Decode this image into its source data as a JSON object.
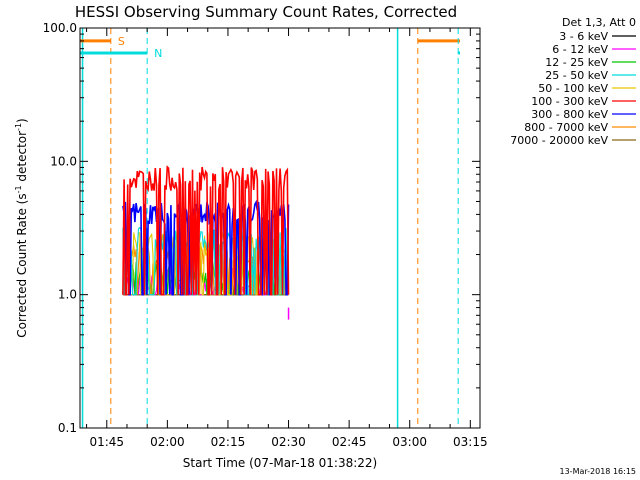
{
  "chart_data": {
    "type": "line",
    "title": "HESSI Observing Summary Count Rates, Corrected",
    "xlabel": "Start Time (07-Mar-18 01:38:22)",
    "ylabel_main": "Corrected Count Rate (s",
    "ylabel_sup1": "-1",
    "ylabel_mid": " detector",
    "ylabel_sup2": "-1",
    "ylabel_end": ")",
    "y_scale": "log",
    "ylim": [
      0.1,
      100
    ],
    "xlim_minutes": [
      98.37,
      197.4
    ],
    "y_ticks": [
      {
        "value": 0.1,
        "label": "0.1"
      },
      {
        "value": 1,
        "label": "1.0"
      },
      {
        "value": 10,
        "label": "10.0"
      },
      {
        "value": 100,
        "label": "100.0"
      }
    ],
    "x_ticks": [
      {
        "minute": 105,
        "label": "01:45"
      },
      {
        "minute": 120,
        "label": "02:00"
      },
      {
        "minute": 135,
        "label": "02:15"
      },
      {
        "minute": 150,
        "label": "02:30"
      },
      {
        "minute": 165,
        "label": "02:45"
      },
      {
        "minute": 180,
        "label": "03:00"
      },
      {
        "minute": 195,
        "label": "03:15"
      }
    ],
    "legend_header": "Det 1,3, Att 0",
    "series": [
      {
        "name": "3 - 6 keV",
        "color": "#000000",
        "level": 1.0,
        "x_start": "01:49",
        "x_end": "02:30"
      },
      {
        "name": "6 - 12 keV",
        "color": "#ff00ff",
        "level": 1.3,
        "x_start": "01:49",
        "x_end": "02:30"
      },
      {
        "name": "12 - 25 keV",
        "color": "#00c800",
        "level": 1.5,
        "x_start": "01:49",
        "x_end": "02:30"
      },
      {
        "name": "25 - 50 keV",
        "color": "#00dcdc",
        "level": 2.6,
        "x_start": "01:49",
        "x_end": "02:30"
      },
      {
        "name": "50 - 100 keV",
        "color": "#e6c800",
        "level": 2.4,
        "x_start": "01:49",
        "x_end": "02:30"
      },
      {
        "name": "100 - 300 keV",
        "color": "#ff0000",
        "level": 7.4,
        "x_start": "01:49",
        "x_end": "02:30"
      },
      {
        "name": "300 - 800 keV",
        "color": "#0000ff",
        "level": 4.1,
        "x_start": "01:49",
        "x_end": "02:30"
      },
      {
        "name": "800 - 7000 keV",
        "color": "#ff8c00",
        "level": 2.0,
        "x_start": "01:49",
        "x_end": "02:30"
      },
      {
        "name": "7000 - 20000 keV",
        "color": "#8b6914",
        "level": 1.0,
        "x_start": "01:49",
        "x_end": "02:30"
      }
    ],
    "markers": [
      {
        "label": "S",
        "color": "#ff8000",
        "lines": [
          "01:46",
          "03:02"
        ],
        "bar_y": 80
      },
      {
        "label": "N",
        "color": "#00dcdc",
        "lines": [
          "01:55",
          "03:12"
        ],
        "bar_y": 65
      }
    ],
    "shaded_lines": [
      {
        "color": "#00dcdc",
        "at": "01:39"
      },
      {
        "color": "#00dcdc",
        "at": "02:57"
      }
    ],
    "timestamp": "13-Mar-2018 16:15"
  }
}
